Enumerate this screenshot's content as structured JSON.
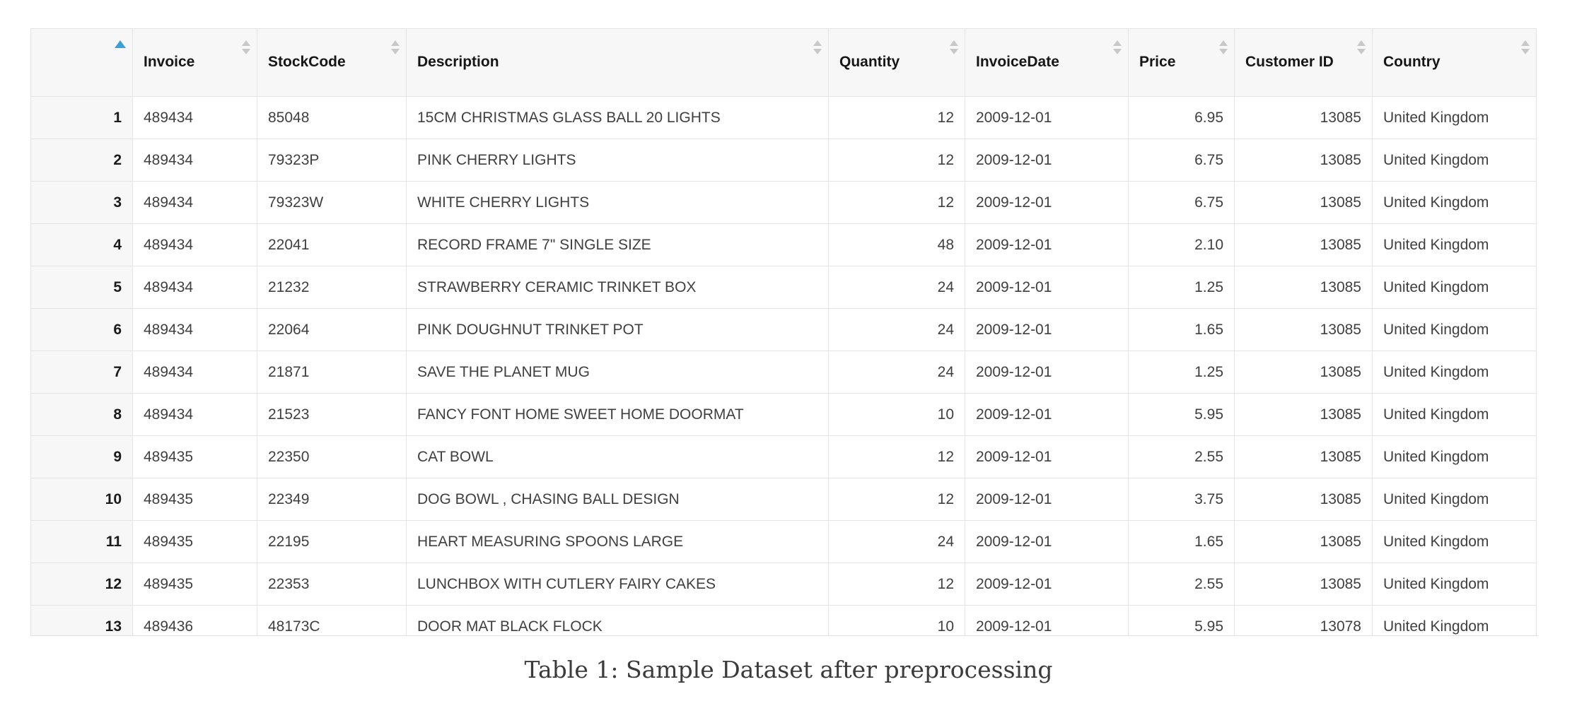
{
  "caption": "Table 1: Sample Dataset after preprocessing",
  "colors": {
    "sort_active": "#3aa0dc",
    "sort_inactive": "#c8c8c8",
    "header_bg": "#f7f7f7",
    "border": "#e4e4e4"
  },
  "chart_data": {
    "type": "table",
    "title": "Table 1: Sample Dataset after preprocessing",
    "sorted_by": "index",
    "sort_direction": "ascending",
    "columns": [
      {
        "key": "index",
        "label": "",
        "sorted": "asc"
      },
      {
        "key": "Invoice",
        "label": "Invoice"
      },
      {
        "key": "StockCode",
        "label": "StockCode"
      },
      {
        "key": "Description",
        "label": "Description"
      },
      {
        "key": "Quantity",
        "label": "Quantity"
      },
      {
        "key": "InvoiceDate",
        "label": "InvoiceDate"
      },
      {
        "key": "Price",
        "label": "Price"
      },
      {
        "key": "CustomerID",
        "label": "Customer ID"
      },
      {
        "key": "Country",
        "label": "Country"
      }
    ],
    "rows": [
      [
        "1",
        "489434",
        "85048",
        "15CM CHRISTMAS GLASS BALL 20 LIGHTS",
        "12",
        "2009-12-01",
        "6.95",
        "13085",
        "United Kingdom"
      ],
      [
        "2",
        "489434",
        "79323P",
        "PINK CHERRY LIGHTS",
        "12",
        "2009-12-01",
        "6.75",
        "13085",
        "United Kingdom"
      ],
      [
        "3",
        "489434",
        "79323W",
        "WHITE CHERRY LIGHTS",
        "12",
        "2009-12-01",
        "6.75",
        "13085",
        "United Kingdom"
      ],
      [
        "4",
        "489434",
        "22041",
        "RECORD FRAME 7\" SINGLE SIZE",
        "48",
        "2009-12-01",
        "2.10",
        "13085",
        "United Kingdom"
      ],
      [
        "5",
        "489434",
        "21232",
        "STRAWBERRY CERAMIC TRINKET BOX",
        "24",
        "2009-12-01",
        "1.25",
        "13085",
        "United Kingdom"
      ],
      [
        "6",
        "489434",
        "22064",
        "PINK DOUGHNUT TRINKET POT",
        "24",
        "2009-12-01",
        "1.65",
        "13085",
        "United Kingdom"
      ],
      [
        "7",
        "489434",
        "21871",
        "SAVE THE PLANET MUG",
        "24",
        "2009-12-01",
        "1.25",
        "13085",
        "United Kingdom"
      ],
      [
        "8",
        "489434",
        "21523",
        "FANCY FONT HOME SWEET HOME DOORMAT",
        "10",
        "2009-12-01",
        "5.95",
        "13085",
        "United Kingdom"
      ],
      [
        "9",
        "489435",
        "22350",
        "CAT BOWL",
        "12",
        "2009-12-01",
        "2.55",
        "13085",
        "United Kingdom"
      ],
      [
        "10",
        "489435",
        "22349",
        "DOG BOWL , CHASING BALL DESIGN",
        "12",
        "2009-12-01",
        "3.75",
        "13085",
        "United Kingdom"
      ],
      [
        "11",
        "489435",
        "22195",
        "HEART MEASURING SPOONS LARGE",
        "24",
        "2009-12-01",
        "1.65",
        "13085",
        "United Kingdom"
      ],
      [
        "12",
        "489435",
        "22353",
        "LUNCHBOX WITH CUTLERY FAIRY CAKES",
        "12",
        "2009-12-01",
        "2.55",
        "13085",
        "United Kingdom"
      ],
      [
        "13",
        "489436",
        "48173C",
        "DOOR MAT BLACK FLOCK",
        "10",
        "2009-12-01",
        "5.95",
        "13078",
        "United Kingdom"
      ]
    ]
  }
}
